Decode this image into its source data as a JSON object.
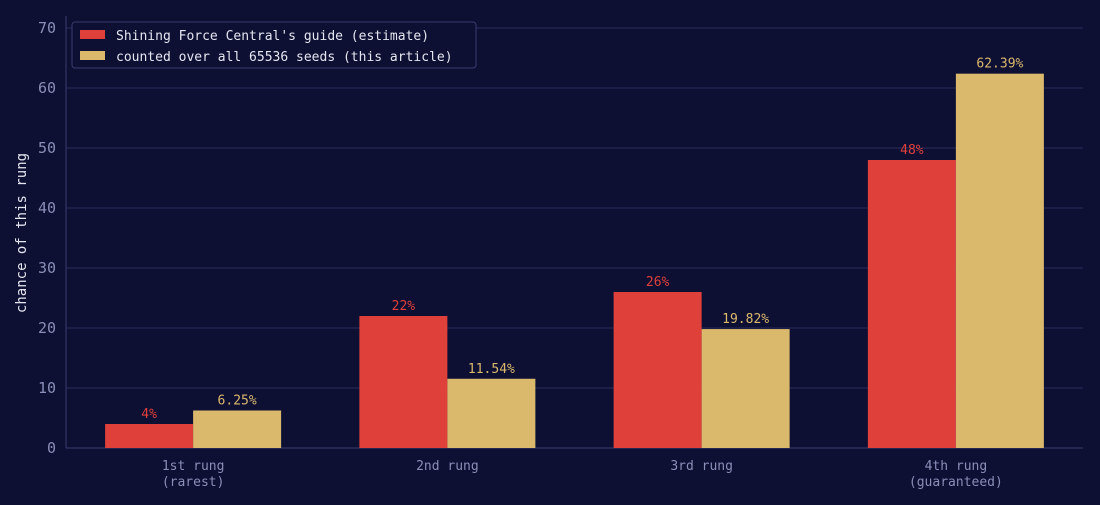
{
  "chart_data": {
    "type": "bar",
    "categories": [
      "1st rung\n(rarest)",
      "2nd rung",
      "3rd rung",
      "4th rung\n(guaranteed)"
    ],
    "series": [
      {
        "name": "Shining Force Central's guide (estimate)",
        "values": [
          4,
          22,
          26,
          48
        ],
        "labels": [
          "4%",
          "22%",
          "26%",
          "48%"
        ],
        "color": "#e0403a"
      },
      {
        "name": "counted over all 65536 seeds (this article)",
        "values": [
          6.25,
          11.54,
          19.82,
          62.39
        ],
        "labels": [
          "6.25%",
          "11.54%",
          "19.82%",
          "62.39%"
        ],
        "color": "#dbb96c"
      }
    ],
    "title": "",
    "xlabel": "",
    "ylabel": "chance of this rung",
    "ylim": [
      0,
      72
    ],
    "yticks": [
      0,
      10,
      20,
      30,
      40,
      50,
      60,
      70
    ],
    "grid": true,
    "legend": "top-left"
  },
  "colors": {
    "background": "#0d0f33",
    "grid": "#2a2d5e",
    "axis": "#3a3e70"
  }
}
